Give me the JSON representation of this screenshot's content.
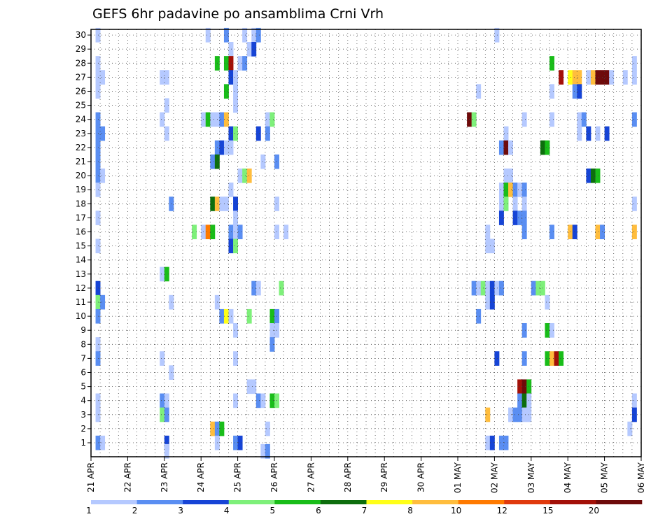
{
  "chart_data": {
    "type": "heatmap",
    "title": "GEFS 6hr padavine po ansamblima Crni Vrh",
    "x_tick_labels": [
      "21 APR",
      "22 APR",
      "23 APR",
      "24 APR",
      "25 APR",
      "26 APR",
      "27 APR",
      "28 APR",
      "29 APR",
      "30 APR",
      "01 MAY",
      "02 MAY",
      "03 MAY",
      "04 MAY",
      "05 MAY",
      "06 MAY"
    ],
    "x_steps_per_day": 4,
    "x_step_count": 60,
    "y_tick_labels": [
      "1",
      "2",
      "3",
      "4",
      "5",
      "6",
      "7",
      "8",
      "9",
      "10",
      "11",
      "12",
      "13",
      "14",
      "15",
      "16",
      "17",
      "18",
      "19",
      "20",
      "21",
      "22",
      "23",
      "24",
      "25",
      "26",
      "27",
      "28",
      "29",
      "30"
    ],
    "ylim": [
      1,
      30
    ],
    "grid": true,
    "colorbar": {
      "levels": [
        1,
        2,
        3,
        4,
        5,
        6,
        7,
        8,
        10,
        12,
        15,
        20
      ],
      "tick_labels": [
        "1",
        "2",
        "3",
        "4",
        "5",
        "6",
        "7",
        "8",
        "10",
        "12",
        "15",
        "20"
      ],
      "colors": [
        "#b5c9ff",
        "#5a8ef2",
        "#1644d6",
        "#7ef07a",
        "#19bd19",
        "#0d6e0d",
        "#ffff18",
        "#ffbd3d",
        "#ff7a00",
        "#e03a0d",
        "#a31008",
        "#6e0a0a"
      ]
    },
    "cells": [
      [
        0.5,
        30,
        1
      ],
      [
        12.5,
        30,
        1
      ],
      [
        14.5,
        30,
        2
      ],
      [
        16.5,
        30,
        1
      ],
      [
        17.5,
        30,
        1
      ],
      [
        18,
        30,
        2
      ],
      [
        44,
        30,
        1
      ],
      [
        15,
        29,
        1
      ],
      [
        17,
        29,
        1
      ],
      [
        17.5,
        29,
        3
      ],
      [
        0.5,
        28,
        1
      ],
      [
        13.5,
        28,
        5
      ],
      [
        14.5,
        28,
        5
      ],
      [
        15,
        28,
        11
      ],
      [
        16,
        28,
        1
      ],
      [
        16.5,
        28,
        2
      ],
      [
        50,
        28,
        5
      ],
      [
        59,
        28,
        1
      ],
      [
        0.5,
        27,
        1
      ],
      [
        1,
        27,
        1
      ],
      [
        7.5,
        27,
        1
      ],
      [
        8,
        27,
        1
      ],
      [
        15,
        27,
        3
      ],
      [
        15.5,
        27,
        1
      ],
      [
        51,
        27,
        11
      ],
      [
        52,
        27,
        7
      ],
      [
        52.5,
        27,
        8
      ],
      [
        53,
        27,
        8
      ],
      [
        54,
        27,
        1
      ],
      [
        54.5,
        27,
        8
      ],
      [
        55,
        27,
        12
      ],
      [
        55.5,
        27,
        12
      ],
      [
        56,
        27,
        12
      ],
      [
        56.5,
        27,
        1
      ],
      [
        58,
        27,
        1
      ],
      [
        59,
        27,
        1
      ],
      [
        0.5,
        26,
        1
      ],
      [
        14.5,
        26,
        5
      ],
      [
        15.5,
        26,
        1
      ],
      [
        42,
        26,
        1
      ],
      [
        50,
        26,
        1
      ],
      [
        52.5,
        26,
        2
      ],
      [
        53,
        26,
        3
      ],
      [
        8,
        25,
        1
      ],
      [
        15.5,
        25,
        1
      ],
      [
        0.5,
        24,
        2
      ],
      [
        7.5,
        24,
        1
      ],
      [
        12,
        24,
        1
      ],
      [
        12.5,
        24,
        5
      ],
      [
        13,
        24,
        1
      ],
      [
        13.5,
        24,
        1
      ],
      [
        14,
        24,
        2
      ],
      [
        14.5,
        24,
        8
      ],
      [
        19,
        24,
        1
      ],
      [
        19.5,
        24,
        4
      ],
      [
        41,
        24,
        12
      ],
      [
        41.5,
        24,
        4
      ],
      [
        47,
        24,
        1
      ],
      [
        50,
        24,
        1
      ],
      [
        53,
        24,
        1
      ],
      [
        53.5,
        24,
        2
      ],
      [
        59,
        24,
        2
      ],
      [
        0.5,
        23,
        2
      ],
      [
        1,
        23,
        2
      ],
      [
        8,
        23,
        1
      ],
      [
        15,
        23,
        3
      ],
      [
        15.5,
        23,
        4
      ],
      [
        18,
        23,
        3
      ],
      [
        19,
        23,
        2
      ],
      [
        45,
        23,
        1
      ],
      [
        53,
        23,
        1
      ],
      [
        54,
        23,
        3
      ],
      [
        55,
        23,
        1
      ],
      [
        56,
        23,
        3
      ],
      [
        0.5,
        22,
        2
      ],
      [
        13.5,
        22,
        2
      ],
      [
        14,
        22,
        3
      ],
      [
        14.5,
        22,
        1
      ],
      [
        15,
        22,
        1
      ],
      [
        44.5,
        22,
        2
      ],
      [
        45,
        22,
        12
      ],
      [
        45.5,
        22,
        1
      ],
      [
        49,
        22,
        6
      ],
      [
        49.5,
        22,
        5
      ],
      [
        0.5,
        21,
        2
      ],
      [
        13,
        21,
        2
      ],
      [
        13.5,
        21,
        6
      ],
      [
        18.5,
        21,
        1
      ],
      [
        20,
        21,
        2
      ],
      [
        0.5,
        20,
        2
      ],
      [
        1,
        20,
        1
      ],
      [
        16,
        20,
        1
      ],
      [
        16.5,
        20,
        4
      ],
      [
        17,
        20,
        8
      ],
      [
        45,
        20,
        1
      ],
      [
        45.5,
        20,
        1
      ],
      [
        54,
        20,
        3
      ],
      [
        54.5,
        20,
        6
      ],
      [
        55,
        20,
        5
      ],
      [
        0.5,
        19,
        1
      ],
      [
        15,
        19,
        1
      ],
      [
        44.5,
        19,
        1
      ],
      [
        45,
        19,
        5
      ],
      [
        45.5,
        19,
        8
      ],
      [
        46,
        19,
        2
      ],
      [
        46.5,
        19,
        1
      ],
      [
        47,
        19,
        2
      ],
      [
        8.5,
        18,
        2
      ],
      [
        13,
        18,
        6
      ],
      [
        13.5,
        18,
        8
      ],
      [
        14,
        18,
        1
      ],
      [
        14.5,
        18,
        1
      ],
      [
        15.5,
        18,
        3
      ],
      [
        20,
        18,
        1
      ],
      [
        44.5,
        18,
        1
      ],
      [
        45,
        18,
        4
      ],
      [
        46,
        18,
        1
      ],
      [
        47,
        18,
        1
      ],
      [
        59,
        18,
        1
      ],
      [
        0.5,
        17,
        1
      ],
      [
        15.5,
        17,
        1
      ],
      [
        44.5,
        17,
        3
      ],
      [
        46,
        17,
        3
      ],
      [
        46.5,
        17,
        2
      ],
      [
        47,
        17,
        2
      ],
      [
        11,
        16,
        4
      ],
      [
        12,
        16,
        1
      ],
      [
        12.5,
        16,
        9
      ],
      [
        13,
        16,
        5
      ],
      [
        15,
        16,
        2
      ],
      [
        15.5,
        16,
        1
      ],
      [
        16,
        16,
        2
      ],
      [
        20,
        16,
        1
      ],
      [
        21,
        16,
        1
      ],
      [
        43,
        16,
        1
      ],
      [
        47,
        16,
        2
      ],
      [
        50,
        16,
        2
      ],
      [
        52,
        16,
        8
      ],
      [
        52.5,
        16,
        3
      ],
      [
        55,
        16,
        8
      ],
      [
        55.5,
        16,
        2
      ],
      [
        59,
        16,
        8
      ],
      [
        0.5,
        15,
        1
      ],
      [
        15,
        15,
        3
      ],
      [
        15.5,
        15,
        4
      ],
      [
        43,
        15,
        1
      ],
      [
        43.5,
        15,
        1
      ],
      [
        7.5,
        13,
        1
      ],
      [
        8,
        13,
        5
      ],
      [
        0.5,
        12,
        3
      ],
      [
        17.5,
        12,
        2
      ],
      [
        18,
        12,
        1
      ],
      [
        20.5,
        12,
        4
      ],
      [
        41.5,
        12,
        2
      ],
      [
        42,
        12,
        1
      ],
      [
        42.5,
        12,
        4
      ],
      [
        43,
        12,
        1
      ],
      [
        43.5,
        12,
        3
      ],
      [
        44,
        12,
        1
      ],
      [
        44.5,
        12,
        2
      ],
      [
        48,
        12,
        2
      ],
      [
        48.5,
        12,
        4
      ],
      [
        49,
        12,
        4
      ],
      [
        0.5,
        11,
        4
      ],
      [
        1,
        11,
        2
      ],
      [
        8.5,
        11,
        1
      ],
      [
        13.5,
        11,
        1
      ],
      [
        43,
        11,
        1
      ],
      [
        43.5,
        11,
        3
      ],
      [
        49.5,
        11,
        1
      ],
      [
        0.5,
        10,
        2
      ],
      [
        14,
        10,
        2
      ],
      [
        14.5,
        10,
        7
      ],
      [
        15,
        10,
        1
      ],
      [
        17,
        10,
        4
      ],
      [
        19.5,
        10,
        5
      ],
      [
        20,
        10,
        2
      ],
      [
        42,
        10,
        2
      ],
      [
        15.5,
        9,
        1
      ],
      [
        19.5,
        9,
        1
      ],
      [
        20,
        9,
        1
      ],
      [
        47,
        9,
        2
      ],
      [
        49.5,
        9,
        5
      ],
      [
        50,
        9,
        1
      ],
      [
        0.5,
        8,
        1
      ],
      [
        19.5,
        8,
        2
      ],
      [
        0.5,
        7,
        2
      ],
      [
        7.5,
        7,
        1
      ],
      [
        15.5,
        7,
        1
      ],
      [
        44,
        7,
        3
      ],
      [
        47,
        7,
        2
      ],
      [
        49.5,
        7,
        5
      ],
      [
        50,
        7,
        8
      ],
      [
        50.5,
        7,
        11
      ],
      [
        51,
        7,
        5
      ],
      [
        8.5,
        6,
        1
      ],
      [
        17,
        5,
        1
      ],
      [
        17.5,
        5,
        1
      ],
      [
        46.5,
        5,
        11
      ],
      [
        47,
        5,
        12
      ],
      [
        47.5,
        5,
        5
      ],
      [
        0.5,
        4,
        1
      ],
      [
        7.5,
        4,
        2
      ],
      [
        8,
        4,
        1
      ],
      [
        15.5,
        4,
        1
      ],
      [
        18,
        4,
        2
      ],
      [
        18.5,
        4,
        1
      ],
      [
        19.5,
        4,
        5
      ],
      [
        20,
        4,
        4
      ],
      [
        46.5,
        4,
        2
      ],
      [
        47,
        4,
        6
      ],
      [
        47.5,
        4,
        1
      ],
      [
        59,
        4,
        1
      ],
      [
        0.5,
        3,
        1
      ],
      [
        7.5,
        3,
        4
      ],
      [
        8,
        3,
        2
      ],
      [
        43,
        3,
        8
      ],
      [
        45.5,
        3,
        1
      ],
      [
        46,
        3,
        2
      ],
      [
        46.5,
        3,
        2
      ],
      [
        47,
        3,
        1
      ],
      [
        47.5,
        3,
        1
      ],
      [
        59,
        3,
        3
      ],
      [
        13,
        2,
        8
      ],
      [
        13.5,
        2,
        2
      ],
      [
        14,
        2,
        5
      ],
      [
        19,
        2,
        1
      ],
      [
        58.5,
        2,
        1
      ],
      [
        0.5,
        1,
        2
      ],
      [
        1,
        1,
        1
      ],
      [
        8,
        1,
        3
      ],
      [
        13.5,
        1,
        1
      ],
      [
        15.5,
        1,
        2
      ],
      [
        16,
        1,
        3
      ],
      [
        43,
        1,
        1
      ],
      [
        43.5,
        1,
        3
      ],
      [
        44.5,
        1,
        2
      ],
      [
        45,
        1,
        2
      ],
      [
        8,
        0.4,
        1
      ],
      [
        18.5,
        0.4,
        1
      ],
      [
        19,
        0.4,
        2
      ]
    ]
  }
}
